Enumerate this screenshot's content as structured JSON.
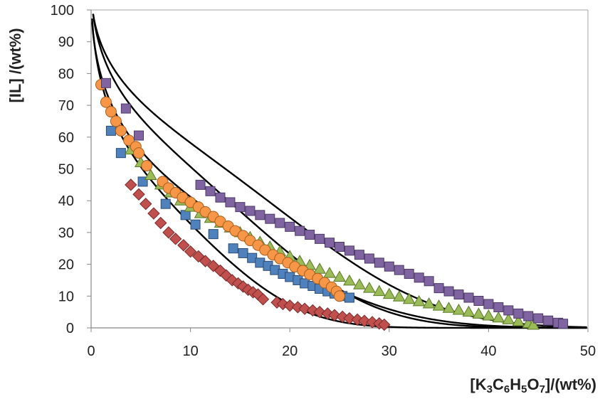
{
  "chart_data": {
    "type": "scatter",
    "xlabel": {
      "parts": [
        {
          "t": "[K",
          "sub": false
        },
        {
          "t": "3",
          "sub": true
        },
        {
          "t": "C",
          "sub": false
        },
        {
          "t": "6",
          "sub": true
        },
        {
          "t": "H",
          "sub": false
        },
        {
          "t": "5",
          "sub": true
        },
        {
          "t": "O",
          "sub": false
        },
        {
          "t": "7",
          "sub": true
        },
        {
          "t": "]/(wt%)",
          "sub": false
        }
      ]
    },
    "ylabel": "[IL] /(wt%)",
    "xlim": [
      0,
      50
    ],
    "ylim": [
      0,
      100
    ],
    "xticks": [
      0,
      10,
      20,
      30,
      40,
      50
    ],
    "yticks": [
      0,
      10,
      20,
      30,
      40,
      50,
      60,
      70,
      80,
      90,
      100
    ],
    "grid": false,
    "legend": "none",
    "series": [
      {
        "marker": "diamond",
        "color": "#c0504d",
        "dark": "#7a2b2a",
        "points": [
          [
            4.0,
            45
          ],
          [
            4.8,
            42
          ],
          [
            5.5,
            39
          ],
          [
            6.3,
            36
          ],
          [
            7.0,
            33
          ],
          [
            7.8,
            30
          ],
          [
            8.5,
            28
          ],
          [
            9.3,
            26
          ],
          [
            10.0,
            24
          ],
          [
            10.8,
            22.5
          ],
          [
            11.5,
            21
          ],
          [
            12.3,
            19.5
          ],
          [
            13.0,
            18
          ],
          [
            13.6,
            16.5
          ],
          [
            14.2,
            15
          ],
          [
            14.8,
            14
          ],
          [
            15.3,
            13
          ],
          [
            15.8,
            12
          ],
          [
            16.3,
            11.2
          ],
          [
            16.8,
            10.5
          ],
          [
            17.3,
            9
          ],
          [
            18.7,
            8
          ],
          [
            19.3,
            7.5
          ],
          [
            20.0,
            7
          ],
          [
            20.8,
            6.5
          ],
          [
            21.5,
            6
          ],
          [
            22.3,
            5.5
          ],
          [
            23.0,
            5
          ],
          [
            23.8,
            4.5
          ],
          [
            24.5,
            4
          ],
          [
            25.3,
            3.5
          ],
          [
            26.0,
            3
          ],
          [
            26.8,
            2.6
          ],
          [
            27.5,
            2.2
          ],
          [
            28.3,
            1.8
          ],
          [
            29.0,
            1.4
          ],
          [
            29.5,
            1.0
          ]
        ]
      },
      {
        "marker": "square",
        "color": "#4f81bd",
        "dark": "#2c4d75",
        "points": [
          [
            2.0,
            62
          ],
          [
            3.0,
            55
          ],
          [
            5.2,
            46
          ],
          [
            7.5,
            39
          ],
          [
            9.5,
            35.5
          ],
          [
            10.5,
            32.5
          ],
          [
            12.3,
            29.5
          ],
          [
            14.3,
            25
          ],
          [
            15.3,
            23.5
          ],
          [
            16.2,
            22
          ],
          [
            17.0,
            20.5
          ],
          [
            17.8,
            19.5
          ],
          [
            18.5,
            18.2
          ],
          [
            19.3,
            17
          ],
          [
            20.0,
            16
          ],
          [
            20.8,
            15
          ],
          [
            21.5,
            14
          ],
          [
            22.3,
            13.2
          ],
          [
            23.0,
            12.3
          ],
          [
            23.8,
            11.5
          ],
          [
            24.5,
            10.8
          ],
          [
            25.3,
            10
          ],
          [
            26.0,
            9.5
          ]
        ]
      },
      {
        "marker": "triangle",
        "color": "#9bbb59",
        "dark": "#5b7a26",
        "points": [
          [
            4.0,
            56
          ],
          [
            5.0,
            52
          ],
          [
            6.0,
            48
          ],
          [
            7.0,
            45
          ],
          [
            8.0,
            42.5
          ],
          [
            9.0,
            40
          ],
          [
            10.0,
            38
          ],
          [
            11.0,
            36
          ],
          [
            12.0,
            34.5
          ],
          [
            13.0,
            33
          ],
          [
            14.0,
            31.5
          ],
          [
            15.0,
            30
          ],
          [
            16.0,
            28.5
          ],
          [
            17.0,
            27
          ],
          [
            18.0,
            25.5
          ],
          [
            19.0,
            24
          ],
          [
            20.0,
            22.5
          ],
          [
            21.0,
            21
          ],
          [
            22.0,
            19.7
          ],
          [
            23.0,
            18.5
          ],
          [
            24.0,
            17.2
          ],
          [
            25.0,
            16
          ],
          [
            26.0,
            14.8
          ],
          [
            27.0,
            13.6
          ],
          [
            28.0,
            12.5
          ],
          [
            29.0,
            11.5
          ],
          [
            30.0,
            10.6
          ],
          [
            31.0,
            9.8
          ],
          [
            32.0,
            9.0
          ],
          [
            33.0,
            8.3
          ],
          [
            34.0,
            7.6
          ],
          [
            35.0,
            6.9
          ],
          [
            36.0,
            6.2
          ],
          [
            37.0,
            5.6
          ],
          [
            38.0,
            5.0
          ],
          [
            39.0,
            4.4
          ],
          [
            40.0,
            3.8
          ],
          [
            41.0,
            3.2
          ],
          [
            42.0,
            2.6
          ],
          [
            43.0,
            2.0
          ],
          [
            44.0,
            1.4
          ],
          [
            44.5,
            0.9
          ]
        ]
      },
      {
        "marker": "circle",
        "color": "#f79646",
        "dark": "#a65f1f",
        "points": [
          [
            1.0,
            76.5
          ],
          [
            1.5,
            71
          ],
          [
            2.0,
            68
          ],
          [
            2.5,
            65
          ],
          [
            3.0,
            62
          ],
          [
            3.8,
            59
          ],
          [
            4.5,
            57
          ],
          [
            4.8,
            55
          ],
          [
            5.6,
            51
          ],
          [
            7.2,
            46
          ],
          [
            7.8,
            44
          ],
          [
            8.5,
            42.5
          ],
          [
            9.2,
            41
          ],
          [
            10.0,
            39.5
          ],
          [
            10.8,
            38
          ],
          [
            11.5,
            36.5
          ],
          [
            12.3,
            35
          ],
          [
            13.0,
            33.5
          ],
          [
            13.8,
            32
          ],
          [
            14.5,
            30.5
          ],
          [
            15.3,
            29
          ],
          [
            16.0,
            27.5
          ],
          [
            16.8,
            26
          ],
          [
            17.5,
            24.5
          ],
          [
            18.3,
            23
          ],
          [
            19.0,
            21.8
          ],
          [
            19.8,
            20.5
          ],
          [
            20.5,
            19.2
          ],
          [
            21.3,
            18
          ],
          [
            22.0,
            16.8
          ],
          [
            22.8,
            15.5
          ],
          [
            23.5,
            14.2
          ],
          [
            24.2,
            12.8
          ],
          [
            24.7,
            11.5
          ],
          [
            25.0,
            10.0
          ]
        ]
      },
      {
        "marker": "square",
        "color": "#8064a2",
        "dark": "#4d3a66",
        "points": [
          [
            1.5,
            77
          ],
          [
            3.5,
            69
          ],
          [
            4.8,
            60.5
          ],
          [
            11.0,
            45
          ],
          [
            12.0,
            43
          ],
          [
            13.0,
            41
          ],
          [
            14.0,
            39.5
          ],
          [
            15.0,
            38
          ],
          [
            16.0,
            36.8
          ],
          [
            17.0,
            35.5
          ],
          [
            18.0,
            34.3
          ],
          [
            19.0,
            33
          ],
          [
            20.0,
            31.8
          ],
          [
            21.0,
            30.5
          ],
          [
            22.0,
            29.3
          ],
          [
            23.0,
            28
          ],
          [
            24.0,
            26.8
          ],
          [
            25.0,
            25.5
          ],
          [
            26.0,
            24.3
          ],
          [
            27.0,
            23
          ],
          [
            28.0,
            21.8
          ],
          [
            29.0,
            20.5
          ],
          [
            30.0,
            19.3
          ],
          [
            31.0,
            18.2
          ],
          [
            32.0,
            17
          ],
          [
            33.0,
            15.8
          ],
          [
            34.0,
            14.7
          ],
          [
            35.0,
            12.5
          ],
          [
            36.0,
            11.5
          ],
          [
            37.0,
            10.5
          ],
          [
            38.0,
            9.5
          ],
          [
            39.0,
            8.5
          ],
          [
            40.0,
            7.5
          ],
          [
            41.0,
            6.5
          ],
          [
            42.0,
            5.5
          ],
          [
            43.0,
            4.5
          ],
          [
            44.0,
            3.7
          ],
          [
            45.0,
            3.0
          ],
          [
            46.0,
            2.3
          ],
          [
            47.0,
            1.6
          ],
          [
            47.5,
            1.3
          ]
        ]
      }
    ],
    "fits": [
      {
        "a": 108,
        "b": -0.33,
        "c": 0.00015
      },
      {
        "a": 105,
        "b": -0.28,
        "c": 5e-05
      },
      {
        "a": 109,
        "b": -0.22,
        "c": 7e-05
      },
      {
        "a": 107,
        "b": -0.18,
        "c": 4e-05
      }
    ]
  }
}
